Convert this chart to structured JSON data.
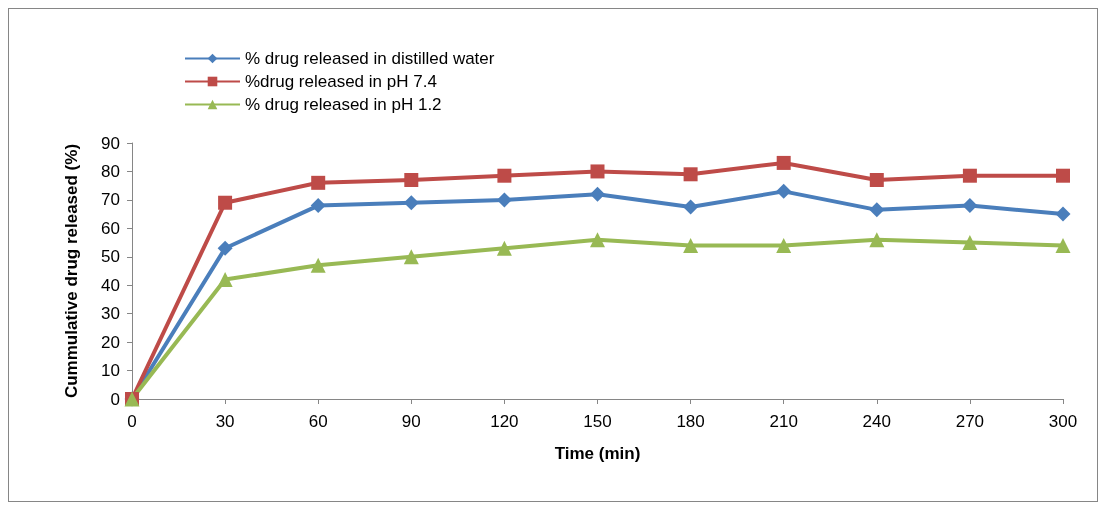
{
  "chart_data": {
    "type": "line",
    "xlabel": "Time (min)",
    "ylabel": "Cummulative drug released (%)",
    "x": [
      0,
      30,
      60,
      90,
      120,
      150,
      180,
      210,
      240,
      270,
      300
    ],
    "series": [
      {
        "name": "% drug released in distilled water",
        "color": "#4a7ebb",
        "marker": "diamond",
        "values": [
          0,
          53,
          68,
          69,
          70,
          72,
          67.5,
          73,
          66.5,
          68,
          65
        ]
      },
      {
        "name": "%drug released in pH 7.4",
        "color": "#be4b48",
        "marker": "square",
        "values": [
          0,
          69,
          76,
          77,
          78.5,
          80,
          79,
          83,
          77,
          78.5,
          78.5
        ]
      },
      {
        "name": "% drug released in pH 1.2",
        "color": "#98b954",
        "marker": "triangle",
        "values": [
          0,
          42,
          47,
          50,
          53,
          56,
          54,
          54,
          56,
          55,
          54
        ]
      }
    ],
    "xlim": [
      0,
      300
    ],
    "xticks": [
      0,
      30,
      60,
      90,
      120,
      150,
      180,
      210,
      240,
      270,
      300
    ],
    "ylim": [
      0,
      90
    ],
    "yticks": [
      0,
      10,
      20,
      30,
      40,
      50,
      60,
      70,
      80,
      90
    ],
    "grid": false,
    "legend": "top",
    "line_style": "solid"
  }
}
